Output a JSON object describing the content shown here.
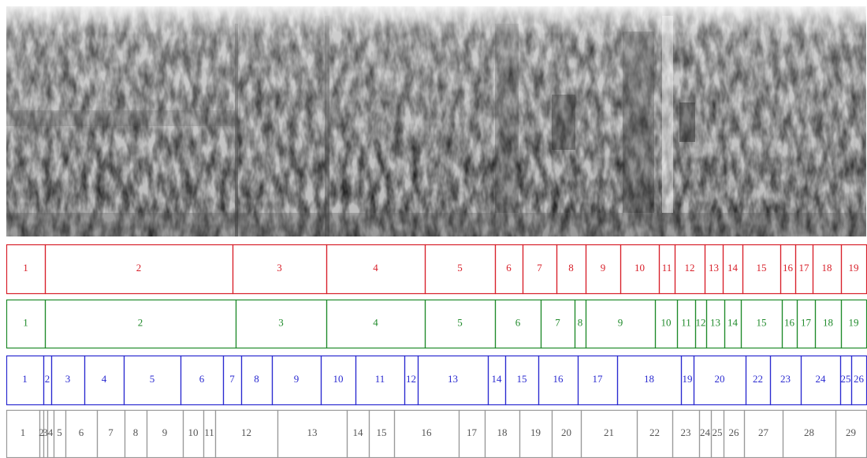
{
  "rows": [
    {
      "segments": [
        1,
        2,
        3,
        4,
        5,
        6,
        7,
        8,
        9,
        10,
        11,
        12,
        13,
        14,
        15,
        16,
        17,
        18,
        19
      ]
    },
    {
      "segments": [
        1,
        2,
        3,
        4,
        5,
        6,
        7,
        8,
        9,
        10,
        11,
        12,
        13,
        14,
        15,
        16,
        17,
        18,
        19
      ]
    },
    {
      "segments": [
        1,
        2,
        3,
        4,
        5,
        6,
        7,
        8,
        9,
        10,
        11,
        12,
        13,
        14,
        15,
        16,
        17,
        18,
        19,
        20,
        22,
        23,
        24,
        25,
        26
      ]
    },
    {
      "segments": [
        1,
        2,
        3,
        4,
        5,
        6,
        7,
        8,
        9,
        10,
        11,
        12,
        13,
        14,
        15,
        16,
        17,
        18,
        19,
        20,
        21,
        22,
        23,
        24,
        25,
        26,
        27,
        28,
        29
      ]
    }
  ]
}
